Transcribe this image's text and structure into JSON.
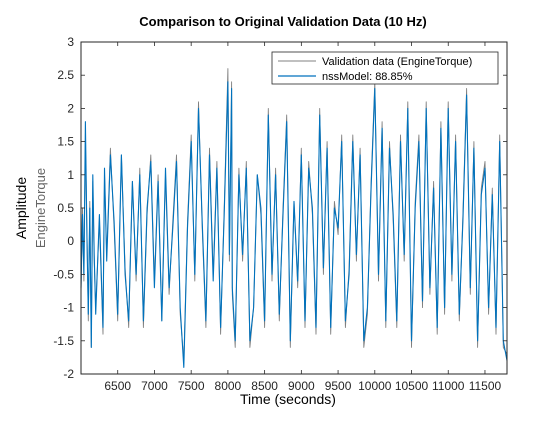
{
  "chart_data": {
    "type": "line",
    "title": "Comparison to Original Validation Data (10 Hz)",
    "xlabel": "Time (seconds)",
    "ylabel": "Amplitude",
    "ylabel_sub": "EngineTorque",
    "xlim": [
      6000,
      11800
    ],
    "ylim": [
      -2,
      3
    ],
    "xticks": [
      6500,
      7000,
      7500,
      8000,
      8500,
      9000,
      9500,
      10000,
      10500,
      11000,
      11500
    ],
    "yticks": [
      -2,
      -1.5,
      -1,
      -0.5,
      0,
      0.5,
      1,
      1.5,
      2,
      2.5,
      3
    ],
    "grid": false,
    "legend": "top-right",
    "series": [
      {
        "name": "Validation data (EngineTorque)",
        "color": "#808080",
        "x": [
          6000,
          6020,
          6040,
          6060,
          6080,
          6100,
          6120,
          6140,
          6160,
          6180,
          6200,
          6250,
          6300,
          6320,
          6350,
          6400,
          6450,
          6500,
          6550,
          6600,
          6650,
          6700,
          6750,
          6800,
          6850,
          6900,
          6950,
          7000,
          7050,
          7100,
          7150,
          7200,
          7250,
          7300,
          7350,
          7400,
          7450,
          7500,
          7550,
          7600,
          7650,
          7700,
          7750,
          7800,
          7850,
          7900,
          7950,
          8000,
          8020,
          8050,
          8060,
          8100,
          8150,
          8200,
          8250,
          8300,
          8350,
          8400,
          8450,
          8500,
          8550,
          8600,
          8650,
          8700,
          8750,
          8800,
          8850,
          8900,
          8950,
          9000,
          9050,
          9100,
          9150,
          9200,
          9250,
          9300,
          9350,
          9400,
          9450,
          9500,
          9550,
          9600,
          9650,
          9700,
          9750,
          9800,
          9850,
          9900,
          9950,
          10000,
          10050,
          10100,
          10150,
          10200,
          10250,
          10300,
          10350,
          10400,
          10450,
          10500,
          10550,
          10600,
          10650,
          10700,
          10750,
          10800,
          10850,
          10900,
          10950,
          11000,
          11050,
          11100,
          11150,
          11200,
          11250,
          11300,
          11350,
          11400,
          11450,
          11500,
          11550,
          11600,
          11650,
          11700,
          11750,
          11800
        ],
        "values": [
          -0.8,
          0.5,
          -0.6,
          1.5,
          0.2,
          -1.2,
          0.6,
          -1.6,
          0.9,
          -0.3,
          -1.0,
          0.3,
          -1.4,
          1.0,
          -0.2,
          1.4,
          0.2,
          -1.2,
          1.3,
          -0.4,
          -1.3,
          0.9,
          -0.6,
          1.1,
          -1.3,
          0.4,
          1.3,
          -0.6,
          1.0,
          -1.2,
          1.0,
          -0.8,
          0.3,
          1.3,
          -1.1,
          -1.8,
          0.3,
          1.6,
          -0.6,
          2.1,
          0.2,
          -1.3,
          1.4,
          -0.5,
          1.2,
          -1.4,
          0.5,
          2.6,
          -0.3,
          2.4,
          -0.8,
          -1.6,
          1.1,
          -0.3,
          1.2,
          -1.6,
          -1.0,
          1.0,
          0.4,
          -1.3,
          2.0,
          -0.6,
          1.1,
          -1.2,
          0.5,
          1.9,
          -1.6,
          0.6,
          -0.7,
          1.4,
          -1.3,
          1.2,
          0.4,
          -1.4,
          2.0,
          -0.5,
          1.5,
          -1.4,
          0.6,
          0.1,
          1.6,
          -1.3,
          -0.4,
          1.6,
          -0.3,
          1.4,
          -1.6,
          -1.1,
          0.9,
          2.4,
          -0.6,
          1.8,
          -1.3,
          1.5,
          0.3,
          -1.3,
          1.6,
          -0.3,
          2.1,
          -1.6,
          0.6,
          1.6,
          -1.0,
          2.1,
          -0.8,
          0.9,
          -1.4,
          1.8,
          -1.1,
          2.1,
          -0.6,
          1.6,
          -1.2,
          0.4,
          2.3,
          -0.8,
          1.5,
          -1.6,
          0.8,
          1.2,
          -1.1,
          0.8,
          -1.4,
          1.6,
          -1.6,
          -1.7
        ]
      },
      {
        "name": "nssModel: 88.85%",
        "color": "#0072bd",
        "x": [
          6000,
          6020,
          6040,
          6060,
          6080,
          6100,
          6120,
          6140,
          6160,
          6180,
          6200,
          6250,
          6300,
          6320,
          6350,
          6400,
          6450,
          6500,
          6550,
          6600,
          6650,
          6700,
          6750,
          6800,
          6850,
          6900,
          6950,
          7000,
          7050,
          7100,
          7150,
          7200,
          7250,
          7300,
          7350,
          7400,
          7450,
          7500,
          7550,
          7600,
          7650,
          7700,
          7750,
          7800,
          7850,
          7900,
          7950,
          8000,
          8020,
          8050,
          8060,
          8100,
          8150,
          8200,
          8250,
          8300,
          8350,
          8400,
          8450,
          8500,
          8550,
          8600,
          8650,
          8700,
          8750,
          8800,
          8850,
          8900,
          8950,
          9000,
          9050,
          9100,
          9150,
          9200,
          9250,
          9300,
          9350,
          9400,
          9450,
          9500,
          9550,
          9600,
          9650,
          9700,
          9750,
          9800,
          9850,
          9900,
          9950,
          10000,
          10050,
          10100,
          10150,
          10200,
          10250,
          10300,
          10350,
          10400,
          10450,
          10500,
          10550,
          10600,
          10650,
          10700,
          10750,
          10800,
          10850,
          10900,
          10950,
          11000,
          11050,
          11100,
          11150,
          11200,
          11250,
          11300,
          11350,
          11400,
          11450,
          11500,
          11550,
          11600,
          11650,
          11700,
          11750,
          11800
        ],
        "values": [
          -0.7,
          0.4,
          -0.5,
          1.8,
          0.1,
          -1.1,
          0.5,
          -1.6,
          1.0,
          -0.2,
          -1.1,
          0.4,
          -1.3,
          1.1,
          -0.3,
          1.3,
          0.3,
          -1.1,
          1.3,
          -0.5,
          -1.2,
          0.9,
          -0.5,
          1.0,
          -1.2,
          0.5,
          1.2,
          -0.7,
          0.9,
          -1.2,
          1.1,
          -0.7,
          0.2,
          1.2,
          -1.0,
          -1.9,
          0.2,
          1.5,
          -0.5,
          2.0,
          0.3,
          -1.2,
          1.3,
          -0.6,
          1.1,
          -1.3,
          0.4,
          2.4,
          -0.2,
          2.3,
          -0.7,
          -1.5,
          1.0,
          -0.2,
          1.1,
          -1.5,
          -1.0,
          1.0,
          0.5,
          -1.2,
          1.9,
          -0.5,
          1.0,
          -1.1,
          0.4,
          1.8,
          -1.5,
          0.6,
          -0.6,
          1.3,
          -1.2,
          1.1,
          0.5,
          -1.3,
          1.9,
          -0.4,
          1.4,
          -1.3,
          0.5,
          0.2,
          1.5,
          -1.2,
          -0.5,
          1.5,
          -0.2,
          1.3,
          -1.5,
          -1.0,
          0.8,
          2.3,
          -0.5,
          1.7,
          -1.2,
          1.4,
          0.4,
          -1.2,
          1.5,
          -0.2,
          2.0,
          -1.5,
          0.5,
          1.5,
          -0.9,
          2.0,
          -0.7,
          0.8,
          -1.3,
          1.7,
          -1.0,
          2.0,
          -0.5,
          1.5,
          -1.1,
          0.3,
          2.2,
          -0.7,
          1.4,
          -1.5,
          0.7,
          1.1,
          -1.0,
          0.7,
          -1.3,
          1.5,
          -1.5,
          -1.8
        ]
      }
    ]
  }
}
